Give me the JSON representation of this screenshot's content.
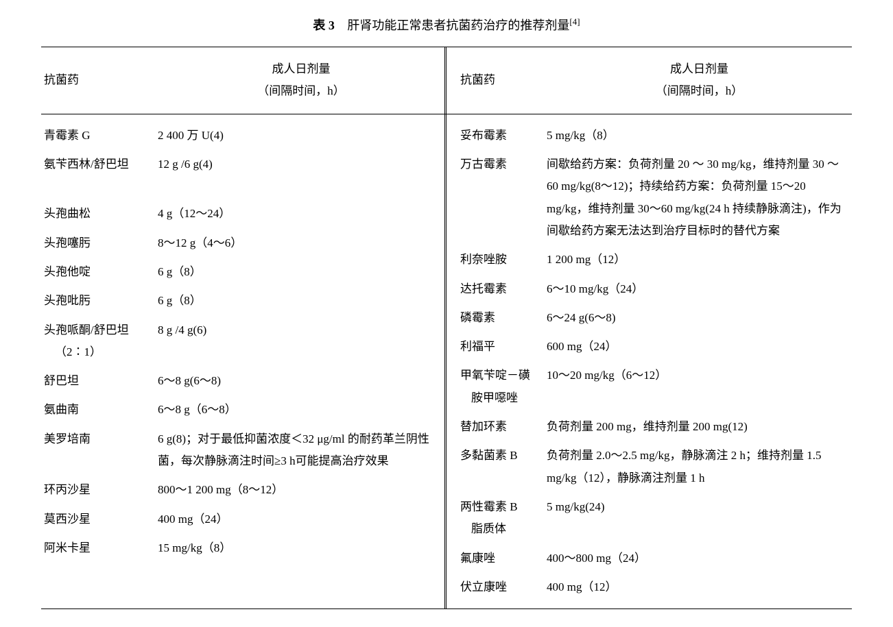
{
  "title": {
    "label": "表 3",
    "main": "肝肾功能正常患者抗菌药治疗的推荐剂量",
    "ref": "[4]"
  },
  "headers": {
    "name": "抗菌药",
    "dose_line1": "成人日剂量",
    "dose_line2": "（间隔时间，h）"
  },
  "left_rows": [
    {
      "name": "青霉素 G",
      "dose": "2 400 万 U(4)"
    },
    {
      "name": "氨苄西林/舒巴坦",
      "dose": "12 g /6 g(4)"
    },
    {
      "name": "",
      "dose": ""
    },
    {
      "name": "",
      "dose": ""
    },
    {
      "name": "",
      "dose": ""
    },
    {
      "name": "头孢曲松",
      "dose": "4 g（12～24）"
    },
    {
      "name": "头孢噻肟",
      "dose": "8～12 g（4～6）"
    },
    {
      "name": "头孢他啶",
      "dose": "6 g（8）"
    },
    {
      "name": "头孢吡肟",
      "dose": "6 g（8）"
    },
    {
      "name": "头孢哌酮/舒巴坦",
      "sub": "（2∶1）",
      "dose": "8 g /4 g(6)"
    },
    {
      "name": "舒巴坦",
      "dose": "6～8 g(6～8)"
    },
    {
      "name": "氨曲南",
      "dose": "6～8 g（6～8）"
    },
    {
      "name": "美罗培南",
      "dose": "6 g(8)；对于最低抑菌浓度＜32 μg/ml 的耐药革兰阴性菌，每次静脉滴注时间≥3 h可能提高治疗效果"
    },
    {
      "name": "环丙沙星",
      "dose": "800～1 200 mg（8～12）"
    },
    {
      "name": "莫西沙星",
      "dose": "400 mg（24）"
    },
    {
      "name": "阿米卡星",
      "dose": "15 mg/kg（8）"
    }
  ],
  "right_rows": [
    {
      "name": "妥布霉素",
      "dose": "5 mg/kg（8）"
    },
    {
      "name": "万古霉素",
      "dose": "间歇给药方案：负荷剂量 20 ～ 30 mg/kg，维持剂量 30 ～ 60 mg/kg(8～12)；持续给药方案：负荷剂量 15～20 mg/kg，维持剂量 30～60 mg/kg(24 h 持续静脉滴注)，作为间歇给药方案无法达到治疗目标时的替代方案"
    },
    {
      "name": "利奈唑胺",
      "dose": "1 200 mg（12）"
    },
    {
      "name": "达托霉素",
      "dose": "6～10 mg/kg（24）"
    },
    {
      "name": "磷霉素",
      "dose": "6～24 g(6～8)"
    },
    {
      "name": "利福平",
      "dose": "600 mg（24）"
    },
    {
      "name": "甲氧苄啶－磺",
      "sub": "胺甲噁唑",
      "dose": "10～20 mg/kg（6～12）"
    },
    {
      "name": "替加环素",
      "dose": "负荷剂量 200 mg，维持剂量 200 mg(12)"
    },
    {
      "name": "多黏菌素 B",
      "dose": "负荷剂量 2.0～2.5 mg/kg，静脉滴注 2 h；维持剂量 1.5 mg/kg（12），静脉滴注剂量 1 h"
    },
    {
      "name": "两性霉素 B",
      "sub": "脂质体",
      "dose": "5 mg/kg(24)"
    },
    {
      "name": "氟康唑",
      "dose": "400～800 mg（24）"
    },
    {
      "name": "伏立康唑",
      "dose": "400 mg（12）"
    }
  ],
  "style": {
    "background_color": "#ffffff",
    "text_color": "#000000",
    "border_color": "#000000",
    "font_size_body": 17,
    "font_size_title": 18,
    "font_size_ref": 13,
    "line_height": 1.9,
    "table_border_top_width": 1.5,
    "table_border_bottom_width": 1.5,
    "header_border_bottom_width": 1,
    "divider_style": "double",
    "left_name_col_width": 170,
    "right_name_col_width": 130
  }
}
